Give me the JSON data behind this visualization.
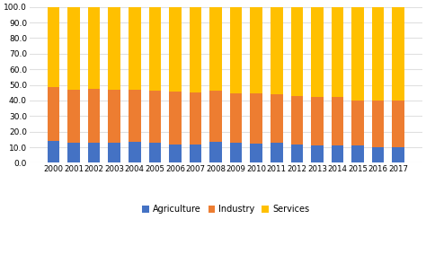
{
  "years": [
    2000,
    2001,
    2002,
    2003,
    2004,
    2005,
    2006,
    2007,
    2008,
    2009,
    2010,
    2011,
    2012,
    2013,
    2014,
    2015,
    2016,
    2017
  ],
  "agriculture": [
    14.0,
    13.0,
    13.0,
    13.0,
    13.5,
    13.0,
    12.0,
    12.0,
    13.5,
    13.0,
    12.5,
    13.0,
    12.0,
    11.0,
    11.0,
    11.0,
    10.0,
    10.0
  ],
  "industry": [
    34.5,
    34.0,
    34.5,
    34.0,
    33.5,
    33.5,
    33.5,
    33.0,
    32.5,
    31.5,
    32.0,
    31.0,
    31.0,
    31.5,
    31.5,
    29.0,
    30.0,
    30.0
  ],
  "services": [
    51.5,
    53.0,
    52.5,
    53.0,
    53.0,
    53.5,
    54.5,
    55.0,
    54.0,
    55.5,
    55.5,
    56.0,
    57.0,
    57.5,
    57.5,
    60.0,
    60.0,
    60.0
  ],
  "colors": {
    "agriculture": "#4472C4",
    "industry": "#ED7D31",
    "services": "#FFC000"
  },
  "ylim": [
    0,
    100
  ],
  "yticks": [
    0.0,
    10.0,
    20.0,
    30.0,
    40.0,
    50.0,
    60.0,
    70.0,
    80.0,
    90.0,
    100.0
  ],
  "background_color": "#ffffff",
  "grid_color": "#e0e0e0"
}
